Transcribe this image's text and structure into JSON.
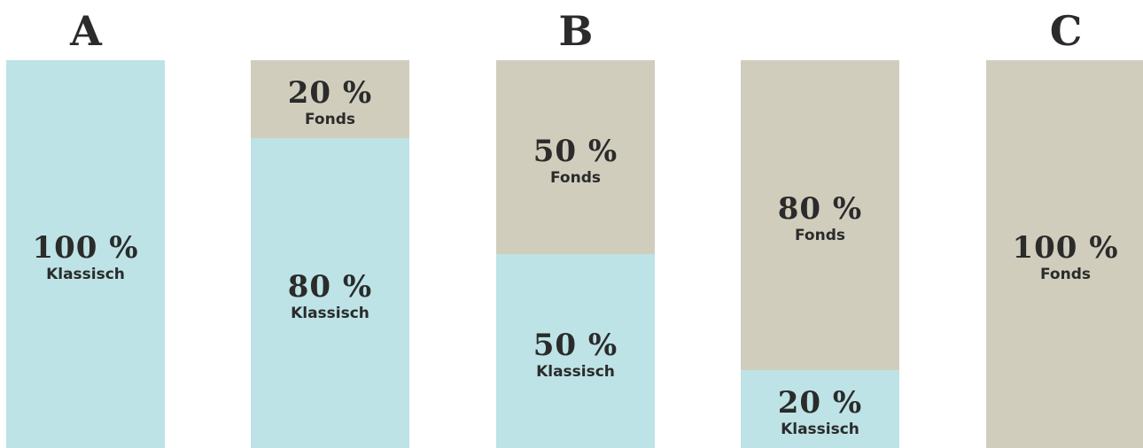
{
  "colors": {
    "klassisch": "#bde3e6",
    "fonds": "#d1cdbd"
  },
  "group_labels": [
    "A",
    "B",
    "C"
  ],
  "chart_data": {
    "type": "bar",
    "stacked": true,
    "categories": [
      "",
      "",
      "",
      "",
      ""
    ],
    "series": [
      {
        "name": "Klassisch",
        "values": [
          100,
          80,
          50,
          20,
          0
        ]
      },
      {
        "name": "Fonds",
        "values": [
          0,
          20,
          50,
          80,
          100
        ]
      }
    ],
    "labels": [
      [
        {
          "pct": "100 %",
          "cat": "Klassisch"
        }
      ],
      [
        {
          "pct": "20 %",
          "cat": "Fonds"
        },
        {
          "pct": "80 %",
          "cat": "Klassisch"
        }
      ],
      [
        {
          "pct": "50 %",
          "cat": "Fonds"
        },
        {
          "pct": "50 %",
          "cat": "Klassisch"
        }
      ],
      [
        {
          "pct": "80 %",
          "cat": "Fonds"
        },
        {
          "pct": "20 %",
          "cat": "Klassisch"
        }
      ],
      [
        {
          "pct": "100 %",
          "cat": "Fonds"
        }
      ]
    ],
    "ylim": [
      0,
      100
    ]
  }
}
